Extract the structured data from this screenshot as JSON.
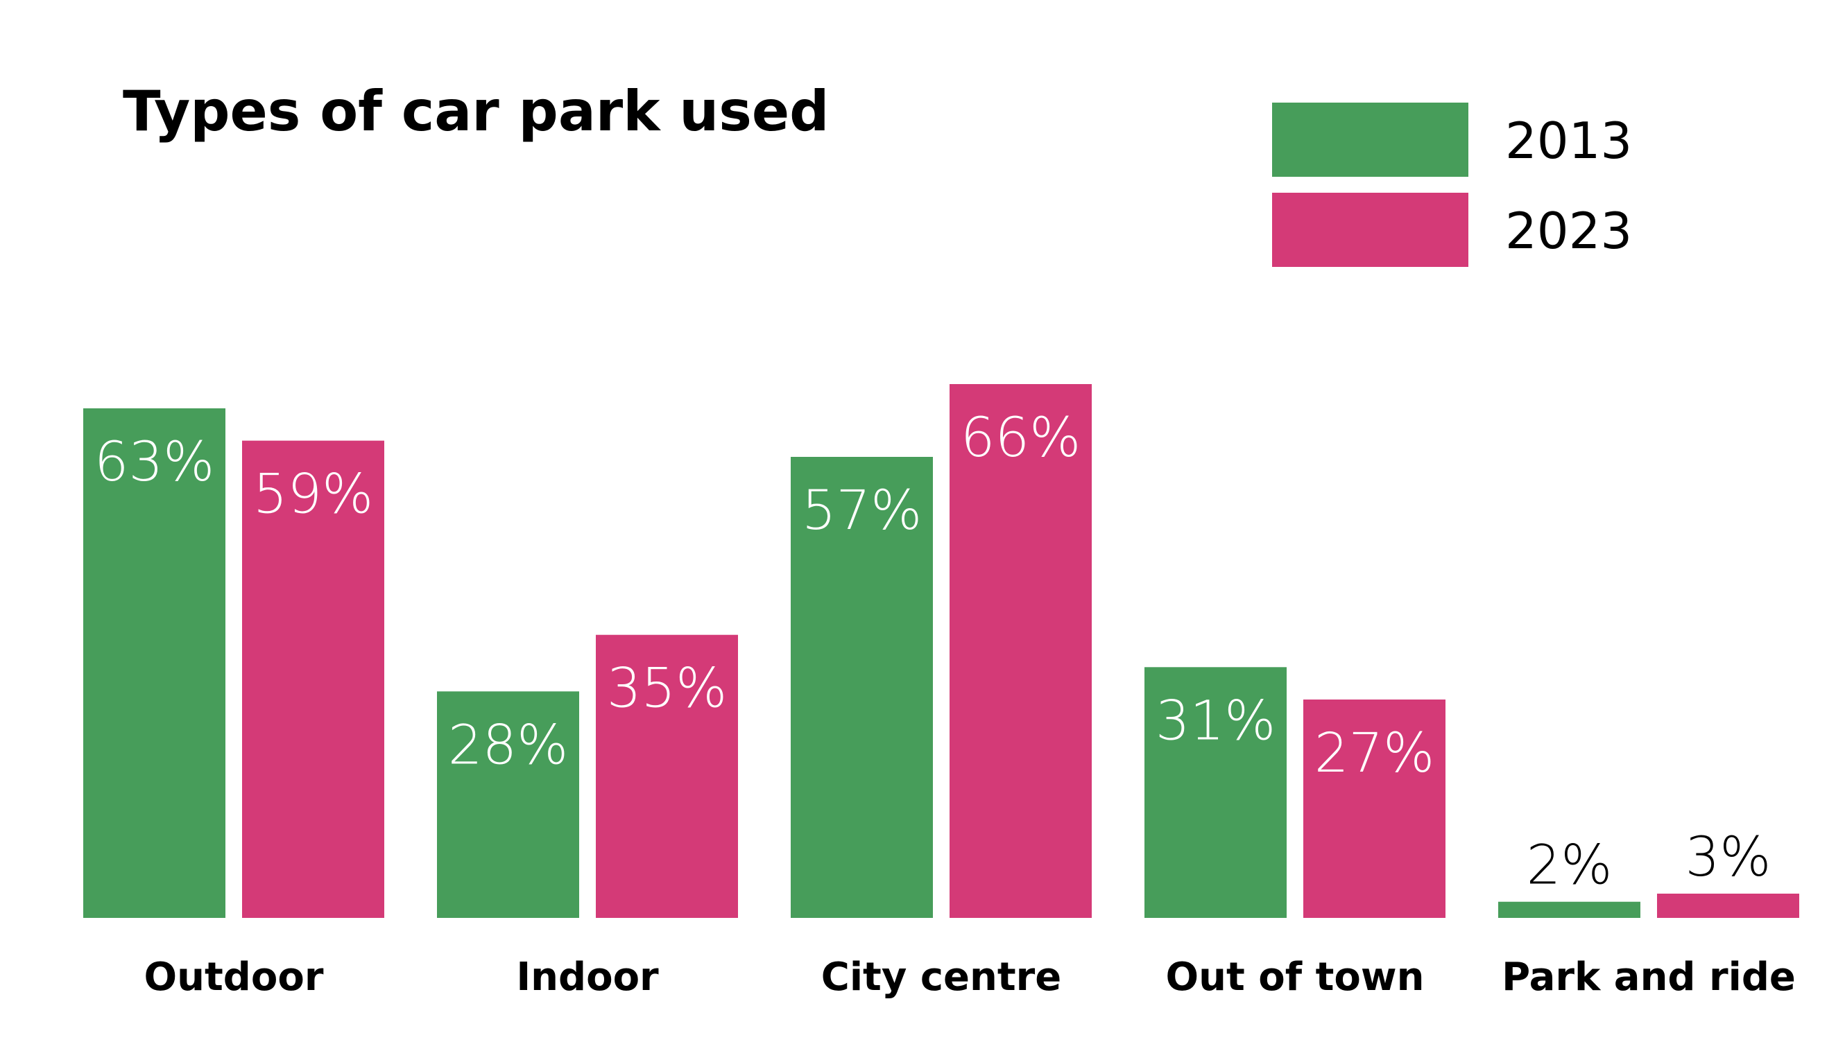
{
  "chart_data": {
    "type": "bar",
    "title": "Types of car park used",
    "xlabel": "",
    "ylabel": "",
    "ylim": [
      0,
      70
    ],
    "grid": false,
    "legend_position": "top-right",
    "categories": [
      "Outdoor",
      "Indoor",
      "City centre",
      "Out of town",
      "Park and ride"
    ],
    "series": [
      {
        "name": "2013",
        "color": "#479d5a",
        "values": [
          63,
          28,
          57,
          31,
          2
        ],
        "labels": [
          "63%",
          "28%",
          "57%",
          "31%",
          "2%"
        ]
      },
      {
        "name": "2023",
        "color": "#d43a77",
        "values": [
          59,
          35,
          66,
          27,
          3
        ],
        "labels": [
          "59%",
          "35%",
          "66%",
          "27%",
          "3%"
        ]
      }
    ]
  }
}
